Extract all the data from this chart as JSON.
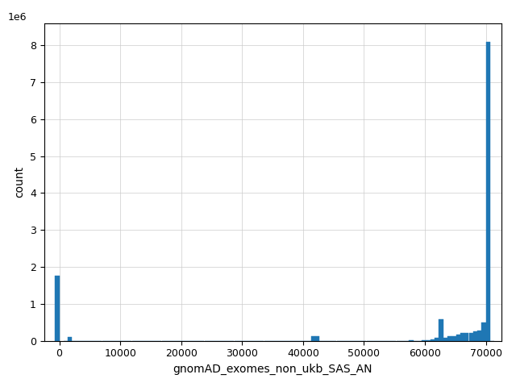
{
  "xlabel": "gnomAD_exomes_non_ukb_SAS_AN",
  "ylabel": "count",
  "bar_color": "#1f77b4",
  "xlim": [
    -2500,
    72500
  ],
  "ylim": [
    0,
    8600000
  ],
  "bin_width": 700,
  "bins_and_counts": [
    [
      -700,
      1750000
    ],
    [
      700,
      0
    ],
    [
      1400,
      90000
    ],
    [
      2100,
      0
    ],
    [
      2800,
      0
    ],
    [
      3500,
      0
    ],
    [
      4200,
      0
    ],
    [
      4900,
      0
    ],
    [
      5600,
      0
    ],
    [
      6300,
      0
    ],
    [
      7000,
      0
    ],
    [
      7700,
      0
    ],
    [
      8400,
      0
    ],
    [
      9100,
      0
    ],
    [
      9800,
      0
    ],
    [
      10500,
      0
    ],
    [
      11200,
      0
    ],
    [
      11900,
      0
    ],
    [
      12600,
      0
    ],
    [
      13300,
      0
    ],
    [
      14000,
      0
    ],
    [
      14700,
      0
    ],
    [
      15400,
      0
    ],
    [
      16100,
      0
    ],
    [
      16800,
      0
    ],
    [
      17500,
      0
    ],
    [
      18200,
      0
    ],
    [
      18900,
      0
    ],
    [
      19600,
      0
    ],
    [
      20300,
      0
    ],
    [
      21000,
      0
    ],
    [
      21700,
      0
    ],
    [
      22400,
      0
    ],
    [
      23100,
      0
    ],
    [
      23800,
      0
    ],
    [
      24500,
      0
    ],
    [
      25200,
      0
    ],
    [
      25900,
      0
    ],
    [
      26600,
      0
    ],
    [
      27300,
      0
    ],
    [
      28000,
      0
    ],
    [
      28700,
      0
    ],
    [
      29400,
      0
    ],
    [
      30100,
      0
    ],
    [
      30800,
      0
    ],
    [
      31500,
      0
    ],
    [
      32200,
      0
    ],
    [
      32900,
      0
    ],
    [
      33600,
      0
    ],
    [
      34300,
      0
    ],
    [
      35000,
      0
    ],
    [
      35700,
      0
    ],
    [
      36400,
      0
    ],
    [
      37100,
      0
    ],
    [
      37800,
      0
    ],
    [
      38500,
      0
    ],
    [
      39200,
      0
    ],
    [
      39900,
      0
    ],
    [
      40600,
      0
    ],
    [
      41300,
      120000
    ],
    [
      42000,
      130000
    ],
    [
      42700,
      0
    ],
    [
      43400,
      0
    ],
    [
      44100,
      0
    ],
    [
      44800,
      0
    ],
    [
      45500,
      0
    ],
    [
      46200,
      0
    ],
    [
      46900,
      0
    ],
    [
      47600,
      0
    ],
    [
      48300,
      0
    ],
    [
      49000,
      0
    ],
    [
      49700,
      0
    ],
    [
      50400,
      0
    ],
    [
      51100,
      0
    ],
    [
      51800,
      0
    ],
    [
      52500,
      0
    ],
    [
      53200,
      0
    ],
    [
      53900,
      0
    ],
    [
      54600,
      0
    ],
    [
      55300,
      0
    ],
    [
      56000,
      0
    ],
    [
      56700,
      0
    ],
    [
      57400,
      8000
    ],
    [
      58100,
      0
    ],
    [
      58800,
      0
    ],
    [
      59500,
      10000
    ],
    [
      60200,
      20000
    ],
    [
      60900,
      30000
    ],
    [
      61600,
      80000
    ],
    [
      62300,
      580000
    ],
    [
      63000,
      80000
    ],
    [
      63700,
      120000
    ],
    [
      64400,
      130000
    ],
    [
      65100,
      160000
    ],
    [
      65800,
      200000
    ],
    [
      66500,
      200000
    ],
    [
      67200,
      220000
    ],
    [
      67900,
      260000
    ],
    [
      68600,
      280000
    ],
    [
      69300,
      500000
    ],
    [
      70000,
      8100000
    ],
    [
      70700,
      0
    ]
  ],
  "yticks": [
    0,
    1000000,
    2000000,
    3000000,
    4000000,
    5000000,
    6000000,
    7000000,
    8000000
  ],
  "ytick_labels": [
    "0",
    "1",
    "2",
    "3",
    "4",
    "5",
    "6",
    "7",
    "8"
  ],
  "xticks": [
    0,
    10000,
    20000,
    30000,
    40000,
    50000,
    60000,
    70000
  ],
  "xtick_labels": [
    "0",
    "10000",
    "20000",
    "30000",
    "40000",
    "50000",
    "60000",
    "70000"
  ],
  "figsize": [
    6.4,
    4.8
  ],
  "dpi": 100
}
